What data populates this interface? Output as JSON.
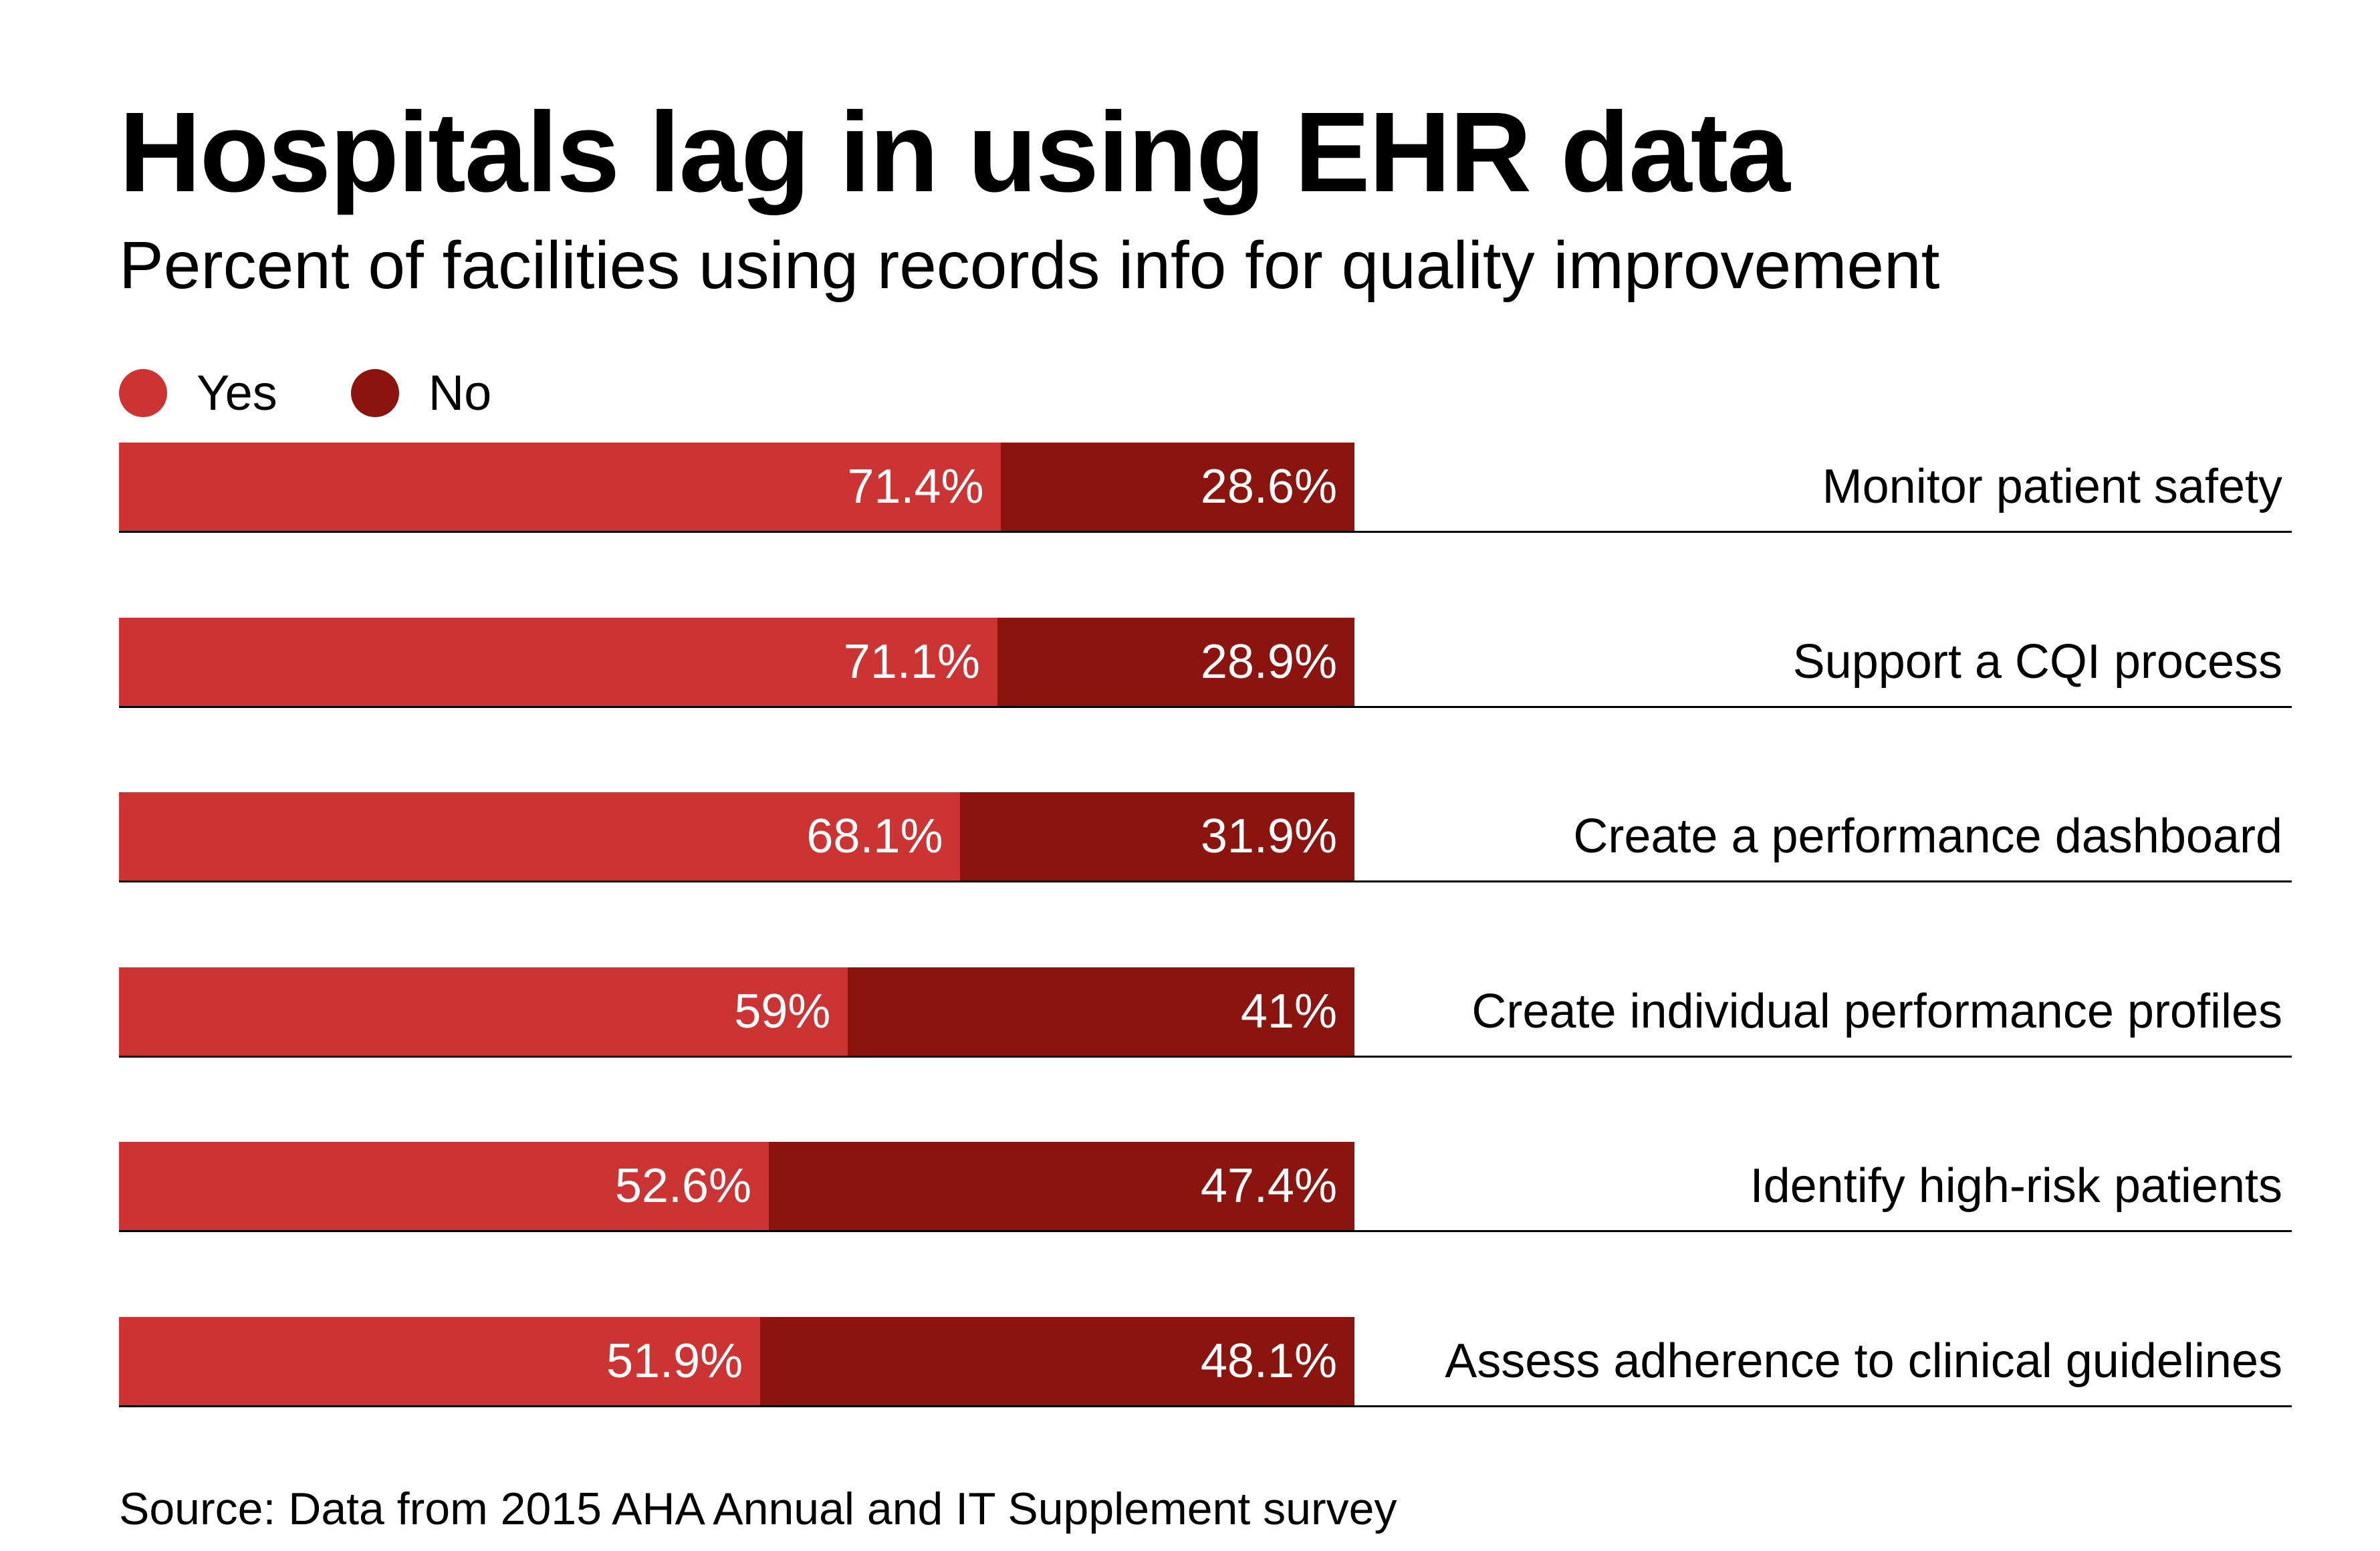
{
  "chart_data": {
    "type": "bar",
    "orientation": "horizontal",
    "stacked": true,
    "title": "Hospitals lag in using EHR data",
    "subtitle": "Percent of facilities using records info for quality improvement",
    "categories": [
      "Monitor patient safety",
      "Support a CQI process",
      "Create a performance dashboard",
      "Create individual performance profiles",
      "Identify high-risk patients",
      "Assess adherence to clinical guidelines"
    ],
    "series": [
      {
        "name": "Yes",
        "color": "#CC3333",
        "values": [
          71.4,
          71.1,
          68.1,
          59,
          52.6,
          51.9
        ],
        "labels": [
          "71.4%",
          "71.1%",
          "68.1%",
          "59%",
          "52.6%",
          "51.9%"
        ]
      },
      {
        "name": "No",
        "color": "#8B140F",
        "values": [
          28.6,
          28.9,
          31.9,
          41,
          47.4,
          48.1
        ],
        "labels": [
          "28.6%",
          "28.9%",
          "31.9%",
          "41%",
          "47.4%",
          "48.1%"
        ]
      }
    ],
    "xlim": [
      0,
      100
    ],
    "legend": "top-left",
    "grid": false,
    "source": "Source: Data from 2015 AHA Annual and IT Supplement survey"
  }
}
